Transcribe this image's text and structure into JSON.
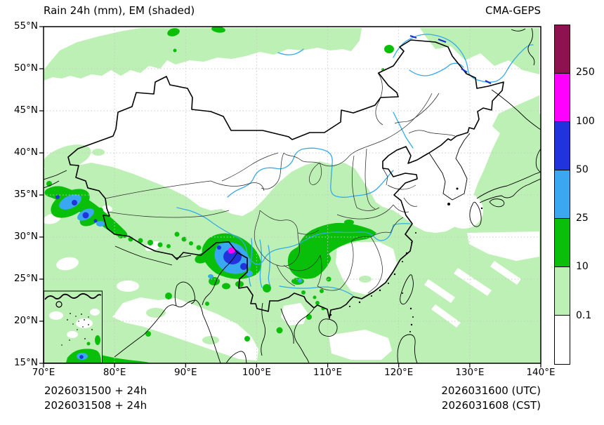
{
  "header": {
    "title": "Rain 24h (mm), EM (shaded)",
    "model": "CMA-GEPS"
  },
  "axes": {
    "lat_ticks": [
      "55°N",
      "50°N",
      "45°N",
      "40°N",
      "35°N",
      "30°N",
      "25°N",
      "20°N",
      "15°N"
    ],
    "lon_ticks": [
      "70°E",
      "80°E",
      "90°E",
      "100°E",
      "110°E",
      "120°E",
      "130°E",
      "140°E"
    ]
  },
  "colorbar": {
    "boundary_labels": [
      "250",
      "100",
      "50",
      "25",
      "10",
      "0.1"
    ],
    "segment_colors_top_to_bottom": [
      "#8e1150",
      "#ff00ff",
      "#2134dc",
      "#3aa8f0",
      "#0abf0a",
      "#bdf0b4",
      "#ffffff"
    ]
  },
  "map": {
    "shading_levels_mm": [
      0.1,
      10,
      25,
      50,
      100,
      250
    ],
    "colors": {
      "light": "#bdf0b4",
      "moderate": "#0abf0a",
      "heavy": "#3aa8f0",
      "very_heavy": "#2134dc",
      "extreme": "#ff00ff",
      "maximum": "#8e1150",
      "river": "#35aae8"
    }
  },
  "footer": {
    "left_line1": "2026031500 + 24h",
    "left_line2": "2026031508 + 24h",
    "right_line1": "2026031600 (UTC)",
    "right_line2": "2026031608 (CST)"
  }
}
